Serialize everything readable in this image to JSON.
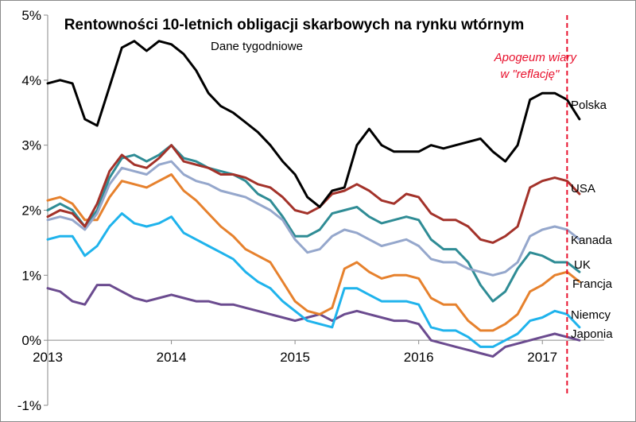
{
  "chart_data": {
    "type": "line",
    "title": "Rentowności 10-letnich obligacji skarbowych na rynku wtórnym",
    "subtitle": "Dane tygodniowe",
    "xlabel": "",
    "ylabel": "",
    "x_ticks": [
      "2013",
      "2014",
      "2015",
      "2016",
      "2017"
    ],
    "y_ticks": [
      "-1%",
      "0%",
      "1%",
      "2%",
      "3%",
      "4%",
      "5%"
    ],
    "xlim": [
      2013.0,
      2017.5
    ],
    "ylim": [
      -1,
      5
    ],
    "grid": false,
    "annotation": {
      "line1": "Apogeum wiary",
      "line2": "w \"reflację\"",
      "x": 2017.2,
      "color": "#e8112d"
    },
    "series": [
      {
        "name": "Polska",
        "color": "#000000",
        "x": [
          2013.0,
          2013.1,
          2013.2,
          2013.3,
          2013.4,
          2013.5,
          2013.6,
          2013.7,
          2013.8,
          2013.9,
          2014.0,
          2014.1,
          2014.2,
          2014.3,
          2014.4,
          2014.5,
          2014.6,
          2014.7,
          2014.8,
          2014.9,
          2015.0,
          2015.1,
          2015.2,
          2015.3,
          2015.4,
          2015.5,
          2015.6,
          2015.7,
          2015.8,
          2015.9,
          2016.0,
          2016.1,
          2016.2,
          2016.3,
          2016.4,
          2016.5,
          2016.6,
          2016.7,
          2016.8,
          2016.9,
          2017.0,
          2017.1,
          2017.2,
          2017.3
        ],
        "values": [
          3.95,
          4.0,
          3.95,
          3.4,
          3.3,
          3.9,
          4.5,
          4.6,
          4.45,
          4.6,
          4.55,
          4.4,
          4.15,
          3.8,
          3.6,
          3.5,
          3.35,
          3.2,
          3.0,
          2.75,
          2.55,
          2.2,
          2.05,
          2.3,
          2.35,
          3.0,
          3.25,
          3.0,
          2.9,
          2.9,
          2.9,
          3.0,
          2.95,
          3.0,
          3.05,
          3.1,
          2.9,
          2.75,
          3.0,
          3.7,
          3.8,
          3.8,
          3.7,
          3.4
        ]
      },
      {
        "name": "USA",
        "color": "#a3322a",
        "x": [
          2013.0,
          2013.1,
          2013.2,
          2013.3,
          2013.4,
          2013.5,
          2013.6,
          2013.7,
          2013.8,
          2013.9,
          2014.0,
          2014.1,
          2014.2,
          2014.3,
          2014.4,
          2014.5,
          2014.6,
          2014.7,
          2014.8,
          2014.9,
          2015.0,
          2015.1,
          2015.2,
          2015.3,
          2015.4,
          2015.5,
          2015.6,
          2015.7,
          2015.8,
          2015.9,
          2016.0,
          2016.1,
          2016.2,
          2016.3,
          2016.4,
          2016.5,
          2016.6,
          2016.7,
          2016.8,
          2016.9,
          2017.0,
          2017.1,
          2017.2,
          2017.3
        ],
        "values": [
          1.9,
          2.0,
          1.95,
          1.75,
          2.1,
          2.6,
          2.85,
          2.7,
          2.65,
          2.8,
          3.0,
          2.75,
          2.7,
          2.65,
          2.55,
          2.55,
          2.5,
          2.4,
          2.35,
          2.2,
          2.0,
          1.95,
          2.05,
          2.25,
          2.3,
          2.4,
          2.3,
          2.15,
          2.1,
          2.25,
          2.2,
          1.95,
          1.85,
          1.85,
          1.75,
          1.55,
          1.5,
          1.6,
          1.75,
          2.35,
          2.45,
          2.5,
          2.45,
          2.25
        ]
      },
      {
        "name": "Kanada",
        "color": "#95a7cc",
        "x": [
          2013.0,
          2013.1,
          2013.2,
          2013.3,
          2013.4,
          2013.5,
          2013.6,
          2013.7,
          2013.8,
          2013.9,
          2014.0,
          2014.1,
          2014.2,
          2014.3,
          2014.4,
          2014.5,
          2014.6,
          2014.7,
          2014.8,
          2014.9,
          2015.0,
          2015.1,
          2015.2,
          2015.3,
          2015.4,
          2015.5,
          2015.6,
          2015.7,
          2015.8,
          2015.9,
          2016.0,
          2016.1,
          2016.2,
          2016.3,
          2016.4,
          2016.5,
          2016.6,
          2016.7,
          2016.8,
          2016.9,
          2017.0,
          2017.1,
          2017.2,
          2017.3
        ],
        "values": [
          1.85,
          1.9,
          1.85,
          1.7,
          1.95,
          2.4,
          2.65,
          2.6,
          2.55,
          2.7,
          2.75,
          2.55,
          2.45,
          2.4,
          2.3,
          2.25,
          2.2,
          2.1,
          2.0,
          1.85,
          1.55,
          1.35,
          1.4,
          1.6,
          1.7,
          1.65,
          1.55,
          1.45,
          1.5,
          1.55,
          1.45,
          1.25,
          1.2,
          1.2,
          1.1,
          1.05,
          1.0,
          1.05,
          1.2,
          1.6,
          1.7,
          1.75,
          1.7,
          1.55
        ]
      },
      {
        "name": "UK",
        "color": "#2f8c95",
        "x": [
          2013.0,
          2013.1,
          2013.2,
          2013.3,
          2013.4,
          2013.5,
          2013.6,
          2013.7,
          2013.8,
          2013.9,
          2014.0,
          2014.1,
          2014.2,
          2014.3,
          2014.4,
          2014.5,
          2014.6,
          2014.7,
          2014.8,
          2014.9,
          2015.0,
          2015.1,
          2015.2,
          2015.3,
          2015.4,
          2015.5,
          2015.6,
          2015.7,
          2015.8,
          2015.9,
          2016.0,
          2016.1,
          2016.2,
          2016.3,
          2016.4,
          2016.5,
          2016.6,
          2016.7,
          2016.8,
          2016.9,
          2017.0,
          2017.1,
          2017.2,
          2017.3
        ],
        "values": [
          2.0,
          2.1,
          2.0,
          1.75,
          2.0,
          2.5,
          2.8,
          2.85,
          2.75,
          2.85,
          3.0,
          2.8,
          2.75,
          2.65,
          2.6,
          2.55,
          2.45,
          2.25,
          2.15,
          1.9,
          1.6,
          1.6,
          1.7,
          1.95,
          2.0,
          2.05,
          1.9,
          1.8,
          1.85,
          1.9,
          1.85,
          1.55,
          1.4,
          1.4,
          1.2,
          0.85,
          0.6,
          0.75,
          1.1,
          1.35,
          1.3,
          1.2,
          1.2,
          1.05
        ]
      },
      {
        "name": "Francja",
        "color": "#e6812d",
        "x": [
          2013.0,
          2013.1,
          2013.2,
          2013.3,
          2013.4,
          2013.5,
          2013.6,
          2013.7,
          2013.8,
          2013.9,
          2014.0,
          2014.1,
          2014.2,
          2014.3,
          2014.4,
          2014.5,
          2014.6,
          2014.7,
          2014.8,
          2014.9,
          2015.0,
          2015.1,
          2015.2,
          2015.3,
          2015.4,
          2015.5,
          2015.6,
          2015.7,
          2015.8,
          2015.9,
          2016.0,
          2016.1,
          2016.2,
          2016.3,
          2016.4,
          2016.5,
          2016.6,
          2016.7,
          2016.8,
          2016.9,
          2017.0,
          2017.1,
          2017.2,
          2017.3
        ],
        "values": [
          2.15,
          2.2,
          2.1,
          1.85,
          1.85,
          2.2,
          2.45,
          2.4,
          2.35,
          2.45,
          2.55,
          2.3,
          2.15,
          1.95,
          1.75,
          1.6,
          1.4,
          1.3,
          1.2,
          0.9,
          0.6,
          0.45,
          0.4,
          0.5,
          1.1,
          1.2,
          1.05,
          0.95,
          1.0,
          1.0,
          0.95,
          0.65,
          0.55,
          0.55,
          0.3,
          0.15,
          0.15,
          0.25,
          0.4,
          0.75,
          0.85,
          1.0,
          1.05,
          0.9
        ]
      },
      {
        "name": "Niemcy",
        "color": "#1fb3ec",
        "x": [
          2013.0,
          2013.1,
          2013.2,
          2013.3,
          2013.4,
          2013.5,
          2013.6,
          2013.7,
          2013.8,
          2013.9,
          2014.0,
          2014.1,
          2014.2,
          2014.3,
          2014.4,
          2014.5,
          2014.6,
          2014.7,
          2014.8,
          2014.9,
          2015.0,
          2015.1,
          2015.2,
          2015.3,
          2015.4,
          2015.5,
          2015.6,
          2015.7,
          2015.8,
          2015.9,
          2016.0,
          2016.1,
          2016.2,
          2016.3,
          2016.4,
          2016.5,
          2016.6,
          2016.7,
          2016.8,
          2016.9,
          2017.0,
          2017.1,
          2017.2,
          2017.3
        ],
        "values": [
          1.55,
          1.6,
          1.6,
          1.3,
          1.45,
          1.75,
          1.95,
          1.8,
          1.75,
          1.8,
          1.9,
          1.65,
          1.55,
          1.45,
          1.35,
          1.25,
          1.05,
          0.9,
          0.8,
          0.6,
          0.45,
          0.3,
          0.25,
          0.2,
          0.8,
          0.8,
          0.7,
          0.6,
          0.6,
          0.6,
          0.55,
          0.2,
          0.15,
          0.15,
          0.05,
          -0.1,
          -0.1,
          0.0,
          0.1,
          0.3,
          0.35,
          0.45,
          0.4,
          0.2
        ]
      },
      {
        "name": "Japonia",
        "color": "#6b4b8f",
        "x": [
          2013.0,
          2013.1,
          2013.2,
          2013.3,
          2013.4,
          2013.5,
          2013.6,
          2013.7,
          2013.8,
          2013.9,
          2014.0,
          2014.1,
          2014.2,
          2014.3,
          2014.4,
          2014.5,
          2014.6,
          2014.7,
          2014.8,
          2014.9,
          2015.0,
          2015.1,
          2015.2,
          2015.3,
          2015.4,
          2015.5,
          2015.6,
          2015.7,
          2015.8,
          2015.9,
          2016.0,
          2016.1,
          2016.2,
          2016.3,
          2016.4,
          2016.5,
          2016.6,
          2016.7,
          2016.8,
          2016.9,
          2017.0,
          2017.1,
          2017.2,
          2017.3
        ],
        "values": [
          0.8,
          0.75,
          0.6,
          0.55,
          0.85,
          0.85,
          0.75,
          0.65,
          0.6,
          0.65,
          0.7,
          0.65,
          0.6,
          0.6,
          0.55,
          0.55,
          0.5,
          0.45,
          0.4,
          0.35,
          0.3,
          0.35,
          0.4,
          0.3,
          0.4,
          0.45,
          0.4,
          0.35,
          0.3,
          0.3,
          0.25,
          0.0,
          -0.05,
          -0.1,
          -0.15,
          -0.2,
          -0.25,
          -0.1,
          -0.05,
          0.0,
          0.05,
          0.1,
          0.05,
          0.0
        ]
      }
    ]
  }
}
